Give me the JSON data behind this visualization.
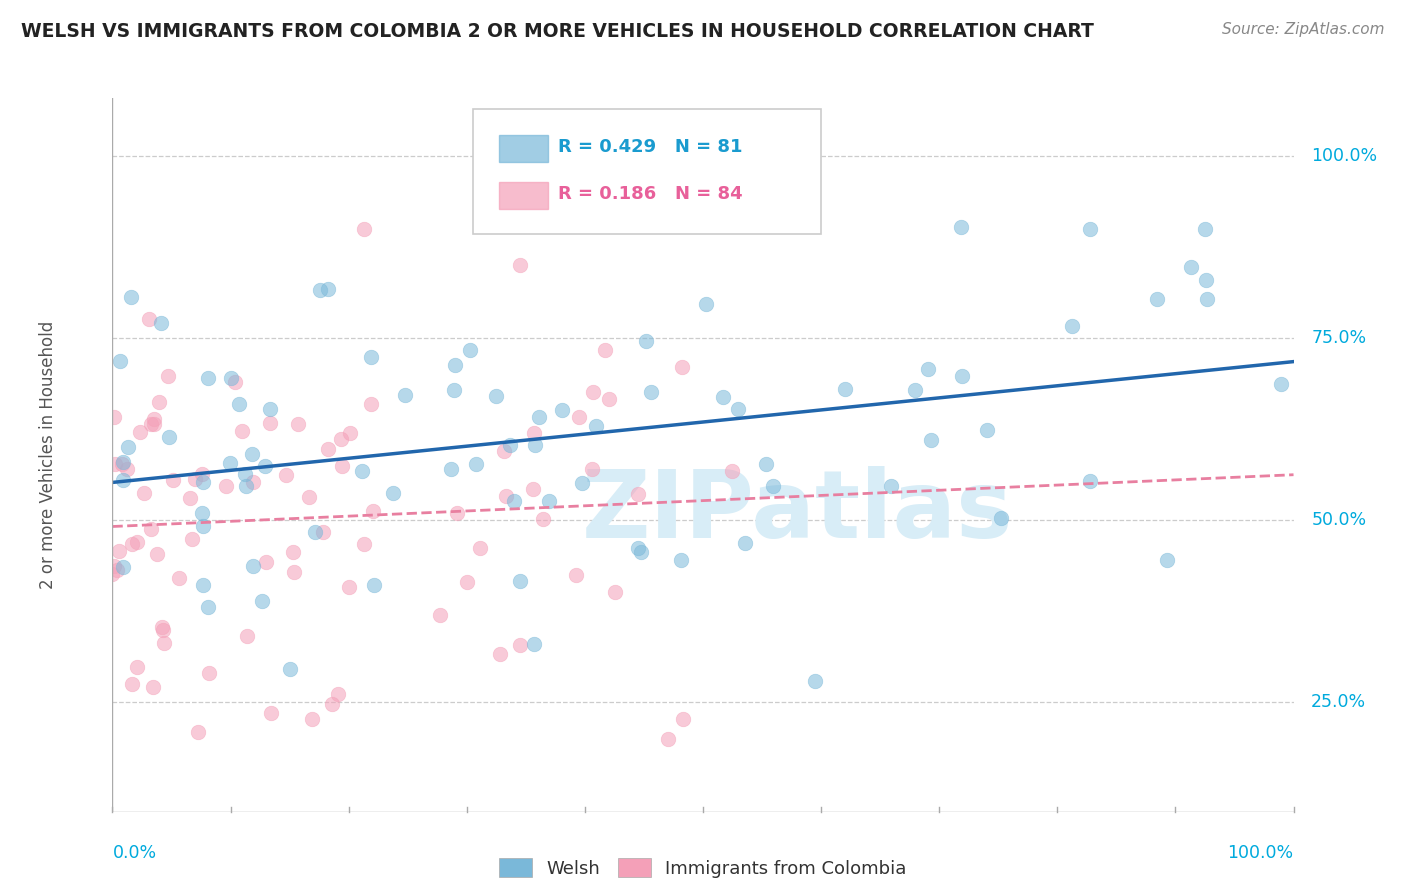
{
  "title": "WELSH VS IMMIGRANTS FROM COLOMBIA 2 OR MORE VEHICLES IN HOUSEHOLD CORRELATION CHART",
  "source": "Source: ZipAtlas.com",
  "ylabel": "2 or more Vehicles in Household",
  "welsh_color": "#7ab8d9",
  "colombia_color": "#f4a0b8",
  "welsh_line_color": "#2166ac",
  "colombia_line_color": "#e87fa0",
  "watermark_text": "ZIPatlas",
  "watermark_color": "#d8edf7",
  "legend_welsh_text": "R = 0.429   N = 81",
  "legend_colombia_text": "R = 0.186   N = 84",
  "yticks": [
    0.25,
    0.5,
    0.75,
    1.0
  ],
  "ytick_labels": [
    "25.0%",
    "50.0%",
    "75.0%",
    "100.0%"
  ]
}
